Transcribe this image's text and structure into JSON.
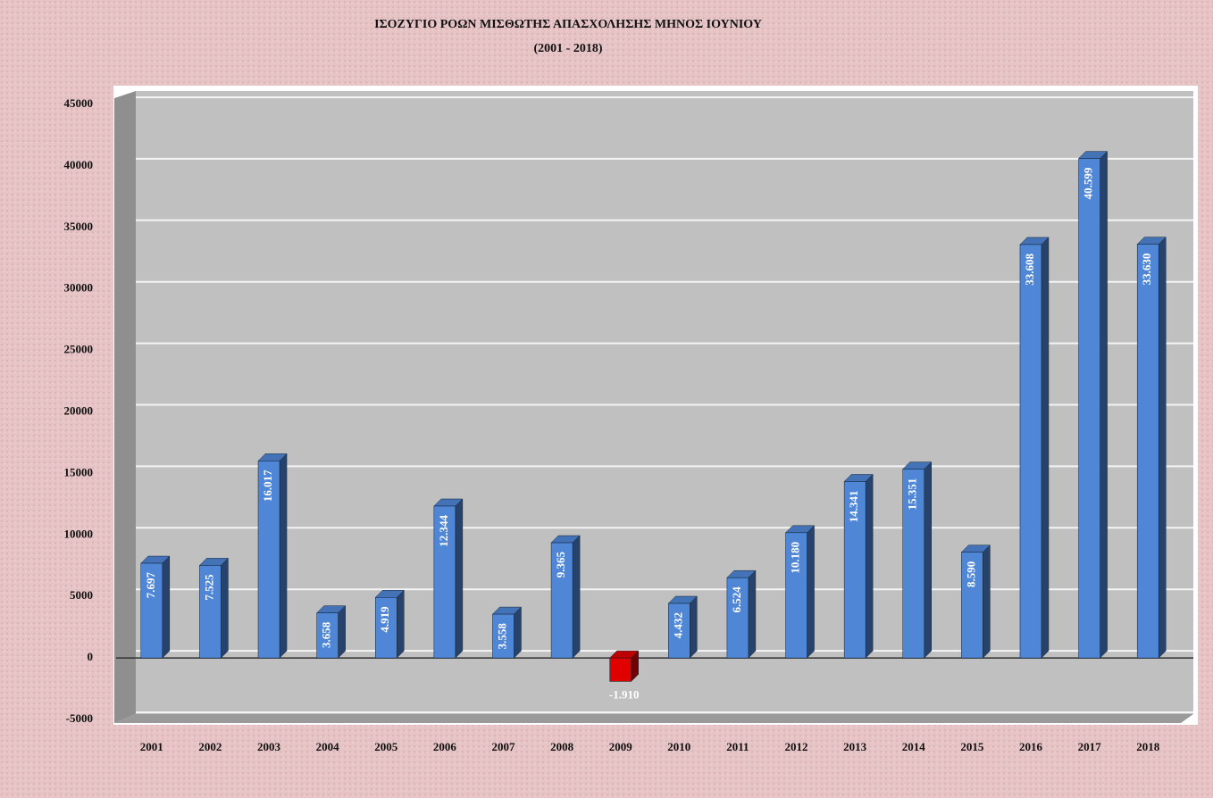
{
  "chart_data": {
    "type": "bar",
    "title": "ΙΣΟΖΥΓΙΟ ΡΟΩΝ ΜΙΣΘΩΤΗΣ ΑΠΑΣΧΟΛΗΣΗΣ ΜΗΝΟΣ ΙΟΥΝΙΟΥ",
    "subtitle": "(2001 - 2018)",
    "categories": [
      "2001",
      "2002",
      "2003",
      "2004",
      "2005",
      "2006",
      "2007",
      "2008",
      "2009",
      "2010",
      "2011",
      "2012",
      "2013",
      "2014",
      "2015",
      "2016",
      "2017",
      "2018"
    ],
    "values": [
      7697,
      7525,
      16017,
      3658,
      4919,
      12344,
      3558,
      9365,
      -1910,
      4432,
      6524,
      10180,
      14341,
      15351,
      8590,
      33608,
      40599,
      33630
    ],
    "value_labels": [
      "7.697",
      "7.525",
      "16.017",
      "3.658",
      "4.919",
      "12.344",
      "3.558",
      "9.365",
      "-1.910",
      "4.432",
      "6.524",
      "10.180",
      "14.341",
      "15.351",
      "8.590",
      "33.608",
      "40.599",
      "33.630"
    ],
    "color": "#4f86d6",
    "negative_color": "#e00000",
    "ylim": [
      -5000,
      45000
    ],
    "yticks": [
      -5000,
      0,
      5000,
      10000,
      15000,
      20000,
      25000,
      30000,
      35000,
      40000,
      45000
    ],
    "grid": true
  }
}
